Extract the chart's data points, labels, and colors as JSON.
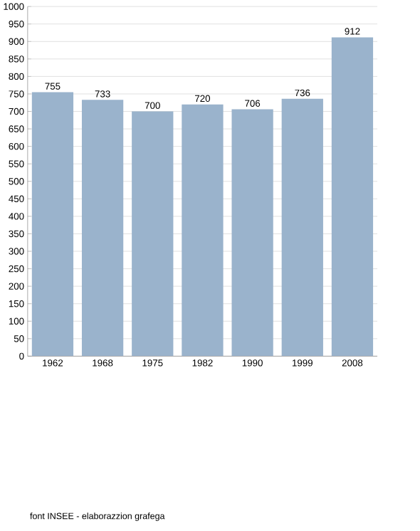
{
  "chart_data": {
    "type": "bar",
    "categories": [
      "1962",
      "1968",
      "1975",
      "1982",
      "1990",
      "1999",
      "2008"
    ],
    "values": [
      755,
      733,
      700,
      720,
      706,
      736,
      912
    ],
    "color": "#9ab3cc",
    "ylim": [
      0,
      1000
    ],
    "yticks": [
      0,
      50,
      100,
      150,
      200,
      250,
      300,
      350,
      400,
      450,
      500,
      550,
      600,
      650,
      700,
      750,
      800,
      850,
      900,
      950,
      1000
    ],
    "grid": "y",
    "data_labels": true,
    "annotations": [
      "font INSEE - elaborazzion grafega"
    ]
  }
}
